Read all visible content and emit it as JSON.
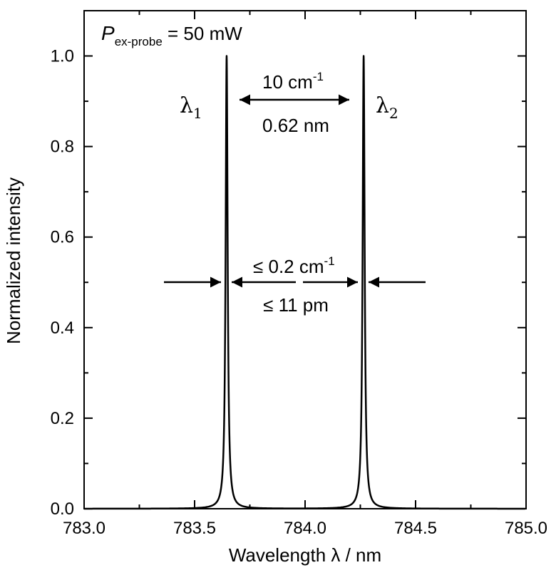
{
  "chart_data": {
    "type": "line",
    "xlabel": "Wavelength λ / nm",
    "ylabel": "Normalized intensity",
    "xlim": [
      783.0,
      785.0
    ],
    "ylim": [
      0.0,
      1.1
    ],
    "x_ticks": [
      "783.0",
      "783.5",
      "784.0",
      "784.5",
      "785.0"
    ],
    "x_tick_values": [
      783.0,
      783.5,
      784.0,
      784.5,
      785.0
    ],
    "y_ticks": [
      "0.0",
      "0.2",
      "0.4",
      "0.6",
      "0.8",
      "1.0"
    ],
    "y_tick_values": [
      0.0,
      0.2,
      0.4,
      0.6,
      0.8,
      1.0
    ],
    "grid": false,
    "line_color": "#000000",
    "peaks": [
      {
        "label": "λ",
        "subscript": "1",
        "center": 783.645,
        "height": 1.0,
        "fwhm": 0.011
      },
      {
        "label": "λ",
        "subscript": "2",
        "center": 784.265,
        "height": 1.0,
        "fwhm": 0.011
      }
    ],
    "annotations": {
      "power_label": {
        "symbol": "P",
        "subscript": "ex-probe",
        "value": " = 50 mW"
      },
      "separation": {
        "wavenumber_base": "10 cm",
        "wavenumber_exp": "-1",
        "wavelength": "0.62 nm"
      },
      "linewidth": {
        "wavenumber_base": "≤ 0.2 cm",
        "wavenumber_exp": "-1",
        "wavelength": "≤ 11 pm"
      }
    }
  }
}
